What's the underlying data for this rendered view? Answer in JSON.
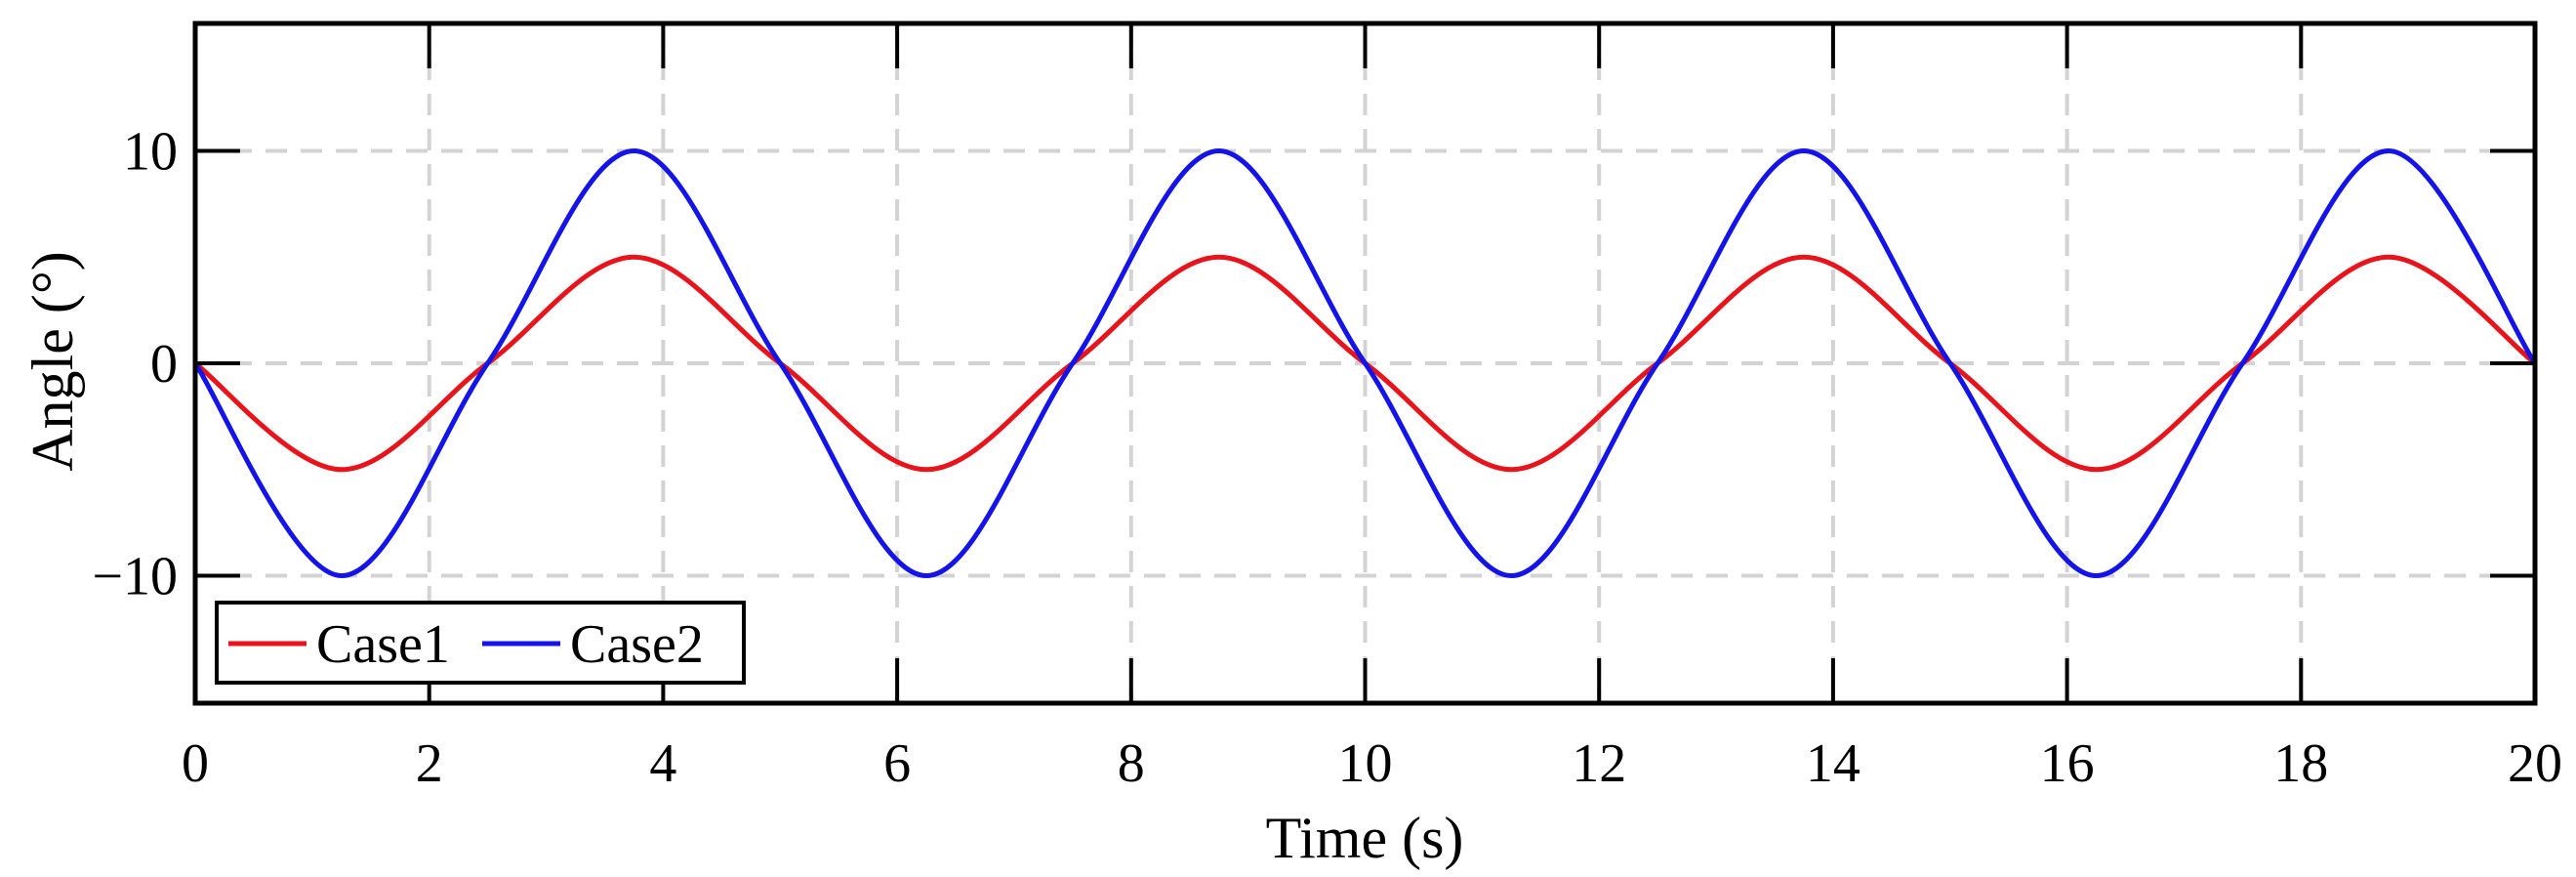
{
  "chart_data": {
    "type": "line",
    "title": "",
    "xlabel": "Time (s)",
    "ylabel": "Angle (°)",
    "xlim": [
      0,
      20
    ],
    "ylim": [
      -16,
      16
    ],
    "xticks": [
      0,
      2,
      4,
      6,
      8,
      10,
      12,
      14,
      16,
      18,
      20
    ],
    "yticks": [
      -10,
      0,
      10
    ],
    "xtick_labels": [
      "0",
      "2",
      "4",
      "6",
      "8",
      "10",
      "12",
      "14",
      "16",
      "18",
      "20"
    ],
    "ytick_labels": [
      "−10",
      "0",
      "10"
    ],
    "grid": true,
    "legend_position": "bottom-left",
    "series": [
      {
        "name": "Case1",
        "color": "#e8141c",
        "x": [
          0,
          1.25,
          2.5,
          3.75,
          5,
          6.25,
          7.5,
          8.75,
          10,
          11.25,
          12.5,
          13.75,
          15,
          16.25,
          17.5,
          18.75,
          20
        ],
        "y": [
          0,
          -5,
          0,
          5,
          0,
          -5,
          0,
          5,
          0,
          -5,
          0,
          5,
          0,
          -5,
          0,
          5,
          0
        ]
      },
      {
        "name": "Case2",
        "color": "#1414e8",
        "x": [
          0,
          1.25,
          2.5,
          3.75,
          5,
          6.25,
          7.5,
          8.75,
          10,
          11.25,
          12.5,
          13.75,
          15,
          16.25,
          17.5,
          18.75,
          20
        ],
        "y": [
          0,
          -10,
          0,
          10,
          0,
          -10,
          0,
          10,
          0,
          -10,
          0,
          10,
          0,
          -10,
          0,
          10,
          0
        ]
      }
    ]
  }
}
